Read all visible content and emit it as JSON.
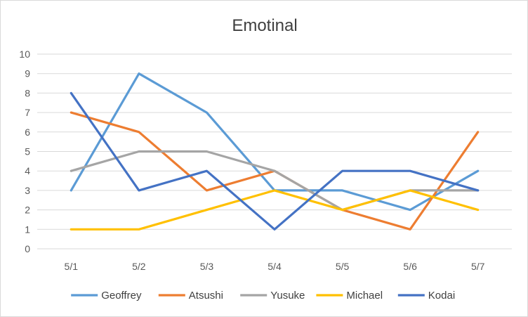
{
  "chart_data": {
    "type": "line",
    "title": "Emotinal",
    "categories": [
      "5/1",
      "5/2",
      "5/3",
      "5/4",
      "5/5",
      "5/6",
      "5/7"
    ],
    "ylim": [
      0,
      10
    ],
    "yticks": [
      0,
      1,
      2,
      3,
      4,
      5,
      6,
      7,
      8,
      9,
      10
    ],
    "grid": true,
    "legend": "bottom",
    "series": [
      {
        "name": "Geoffrey",
        "color": "#5b9bd5",
        "values": [
          3,
          9,
          7,
          3,
          3,
          2,
          4
        ]
      },
      {
        "name": "Atsushi",
        "color": "#ed7d31",
        "values": [
          7,
          6,
          3,
          4,
          2,
          1,
          6
        ]
      },
      {
        "name": "Yusuke",
        "color": "#a5a5a5",
        "values": [
          4,
          5,
          5,
          4,
          2,
          3,
          3
        ]
      },
      {
        "name": "Michael",
        "color": "#ffc000",
        "values": [
          1,
          1,
          2,
          3,
          2,
          3,
          2
        ]
      },
      {
        "name": "Kodai",
        "color": "#4472c4",
        "values": [
          8,
          3,
          4,
          1,
          4,
          4,
          3
        ]
      }
    ]
  }
}
